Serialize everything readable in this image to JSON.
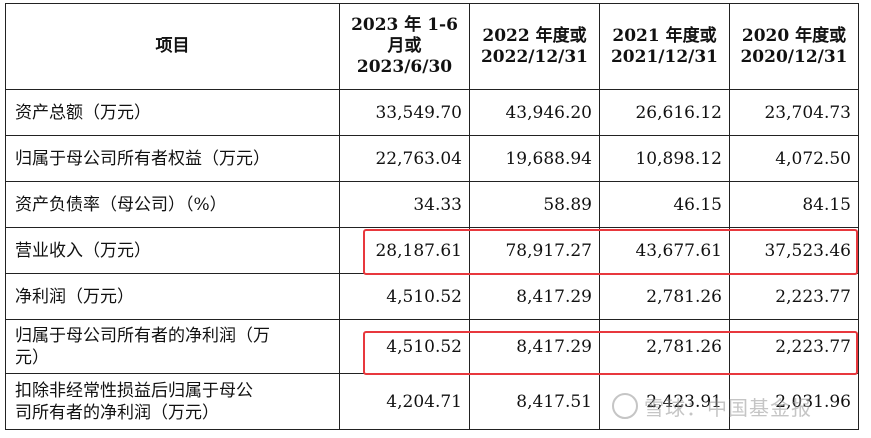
{
  "header": {
    "item": "项目",
    "col1": [
      "2023 年 1-6",
      "月或",
      "2023/6/30"
    ],
    "col2": [
      "2022 年度或",
      "2022/12/31"
    ],
    "col3": [
      "2021 年度或",
      "2021/12/31"
    ],
    "col4": [
      "2020 年度或",
      "2020/12/31"
    ]
  },
  "rows": [
    {
      "label": [
        "资产总额（万元）"
      ],
      "values": [
        "33,549.70",
        "43,946.20",
        "26,616.12",
        "23,704.73"
      ]
    },
    {
      "label": [
        "归属于母公司所有者权益（万元）"
      ],
      "values": [
        "22,763.04",
        "19,688.94",
        "10,898.12",
        "4,072.50"
      ]
    },
    {
      "label": [
        "资产负债率（母公司）（%）"
      ],
      "values": [
        "34.33",
        "58.89",
        "46.15",
        "84.15"
      ]
    },
    {
      "label": [
        "营业收入（万元）"
      ],
      "values": [
        "28,187.61",
        "78,917.27",
        "43,677.61",
        "37,523.46"
      ]
    },
    {
      "label": [
        "净利润（万元）"
      ],
      "values": [
        "4,510.52",
        "8,417.29",
        "2,781.26",
        "2,223.77"
      ]
    },
    {
      "label": [
        "归属于母公司所有者的净利润（万",
        "元）"
      ],
      "values": [
        "4,510.52",
        "8,417.29",
        "2,781.26",
        "2,223.77"
      ]
    },
    {
      "label": [
        "扣除非经常性损益后归属于母公",
        "司所有者的净利润（万元）"
      ],
      "values": [
        "4,204.71",
        "8,417.51",
        "2,423.91",
        "2,031.96"
      ]
    }
  ],
  "highlight_color": "#e8383d",
  "watermark": {
    "text": "雪球：中国基金报",
    "icon": "snowball-logo-icon"
  }
}
